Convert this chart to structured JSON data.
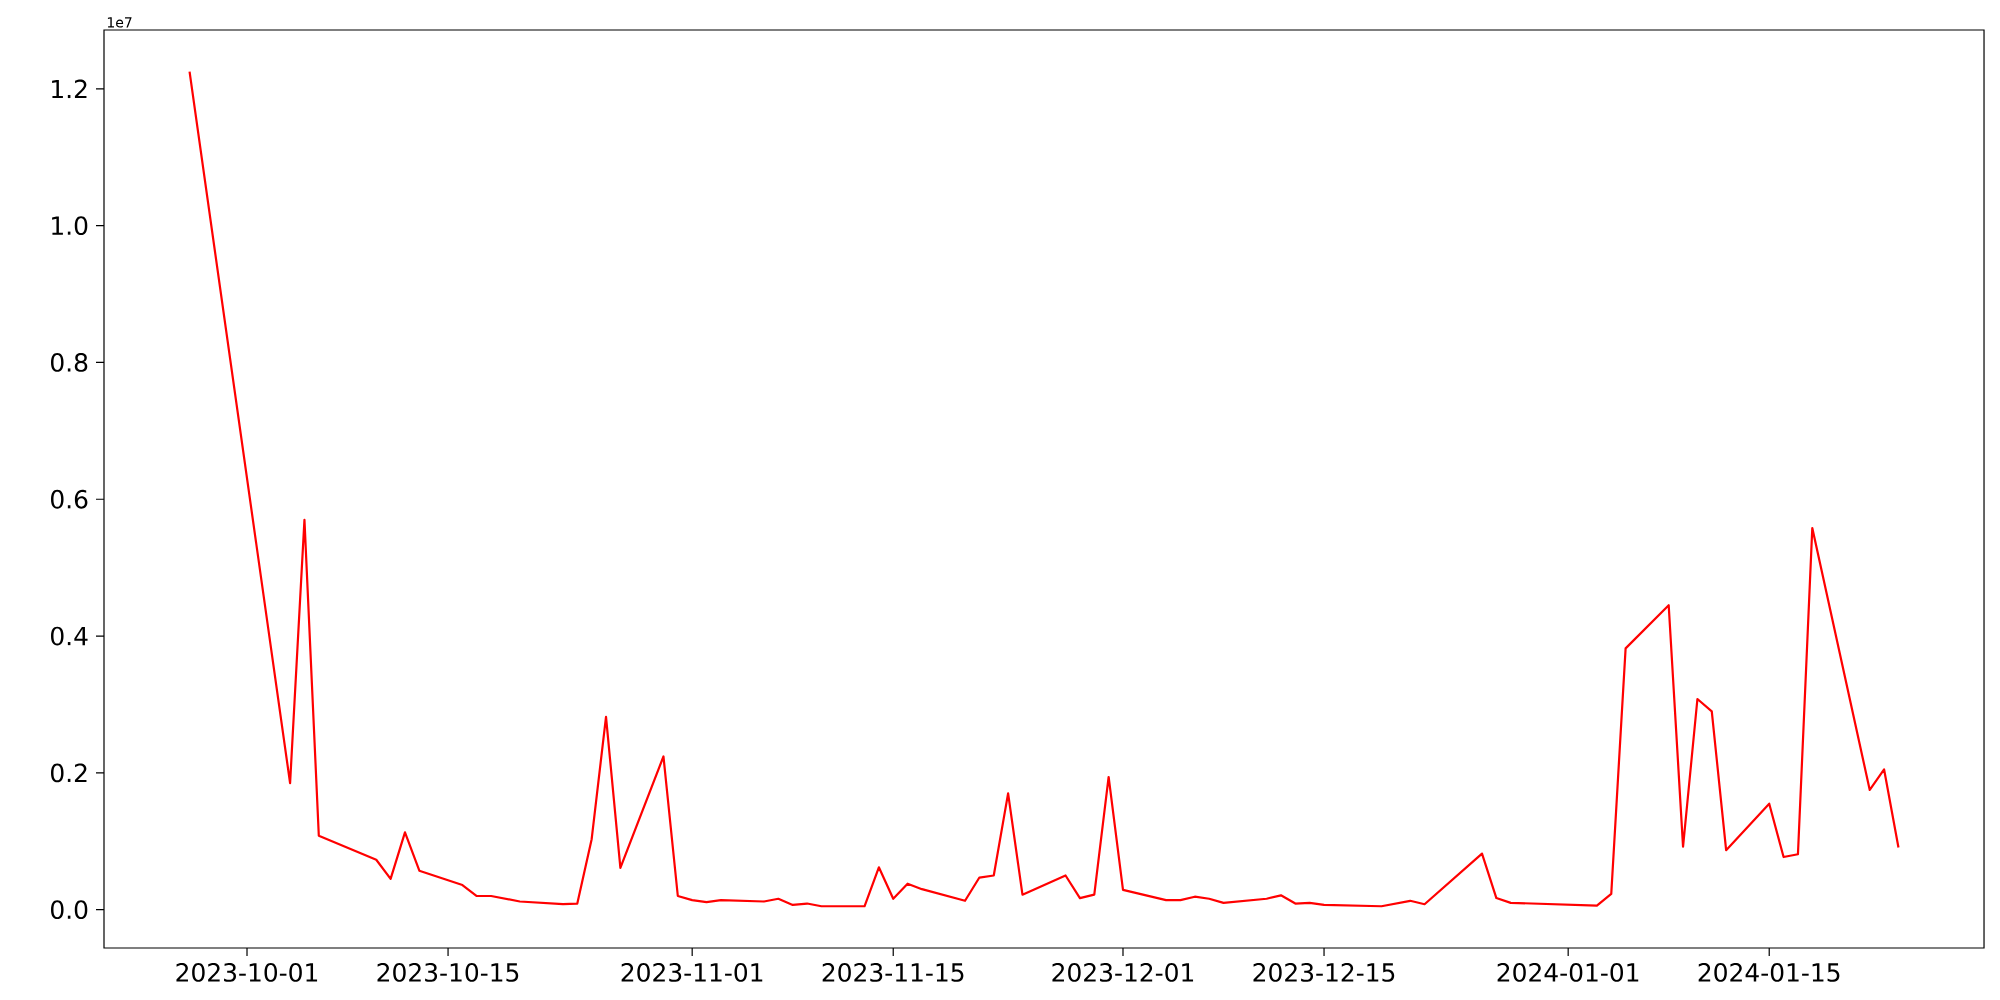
{
  "chart_data": {
    "type": "line",
    "color": "#ff0000",
    "annotations": [
      "1e7"
    ],
    "x": [
      "2023-09-27",
      "2023-10-04",
      "2023-10-05",
      "2023-10-06",
      "2023-10-10",
      "2023-10-11",
      "2023-10-12",
      "2023-10-13",
      "2023-10-16",
      "2023-10-17",
      "2023-10-18",
      "2023-10-20",
      "2023-10-23",
      "2023-10-24",
      "2023-10-25",
      "2023-10-26",
      "2023-10-27",
      "2023-10-30",
      "2023-10-31",
      "2023-11-01",
      "2023-11-02",
      "2023-11-03",
      "2023-11-06",
      "2023-11-07",
      "2023-11-08",
      "2023-11-09",
      "2023-11-10",
      "2023-11-13",
      "2023-11-14",
      "2023-11-15",
      "2023-11-16",
      "2023-11-17",
      "2023-11-20",
      "2023-11-21",
      "2023-11-22",
      "2023-11-23",
      "2023-11-24",
      "2023-11-27",
      "2023-11-28",
      "2023-11-29",
      "2023-11-30",
      "2023-12-01",
      "2023-12-04",
      "2023-12-05",
      "2023-12-06",
      "2023-12-07",
      "2023-12-08",
      "2023-12-11",
      "2023-12-12",
      "2023-12-13",
      "2023-12-14",
      "2023-12-15",
      "2023-12-19",
      "2023-12-21",
      "2023-12-22",
      "2023-12-26",
      "2023-12-27",
      "2023-12-28",
      "2024-01-03",
      "2024-01-04",
      "2024-01-05",
      "2024-01-08",
      "2024-01-09",
      "2024-01-10",
      "2024-01-11",
      "2024-01-12",
      "2024-01-15",
      "2024-01-16",
      "2024-01-17",
      "2024-01-18",
      "2024-01-22",
      "2024-01-23",
      "2024-01-24"
    ],
    "values": [
      1.225,
      0.185,
      0.57,
      0.108,
      0.073,
      0.045,
      0.113,
      0.057,
      0.036,
      0.02,
      0.02,
      0.012,
      0.008,
      0.009,
      0.103,
      0.282,
      0.061,
      0.224,
      0.02,
      0.014,
      0.011,
      0.014,
      0.012,
      0.016,
      0.007,
      0.009,
      0.005,
      0.005,
      0.062,
      0.016,
      0.038,
      0.03,
      0.013,
      0.047,
      0.05,
      0.17,
      0.022,
      0.05,
      0.017,
      0.022,
      0.194,
      0.029,
      0.014,
      0.014,
      0.019,
      0.016,
      0.01,
      0.016,
      0.021,
      0.009,
      0.01,
      0.007,
      0.005,
      0.013,
      0.008,
      0.082,
      0.017,
      0.01,
      0.006,
      0.023,
      0.382,
      0.445,
      0.092,
      0.308,
      0.29,
      0.087,
      0.155,
      0.077,
      0.081,
      0.558,
      0.175,
      0.205,
      0.091
    ],
    "xlim": [
      "2023-09-21T01:00",
      "2024-01-29T23:00"
    ],
    "xticks": [
      "2023-10-01",
      "2023-10-15",
      "2023-11-01",
      "2023-11-15",
      "2023-12-01",
      "2023-12-15",
      "2024-01-01",
      "2024-01-15"
    ],
    "ylim": [
      -0.056,
      1.286
    ],
    "yticks": [
      {
        "value": 0,
        "label": "0.0"
      },
      0.2,
      0.4,
      0.6,
      0.8,
      {
        "value": 1,
        "label": "1.0"
      },
      1.2
    ]
  }
}
